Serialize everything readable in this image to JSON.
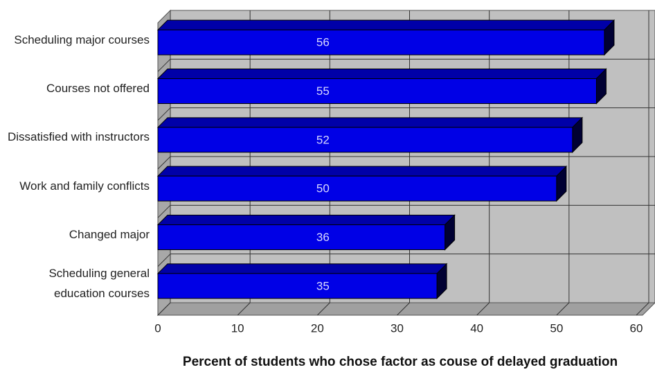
{
  "chart_data": {
    "type": "bar",
    "orientation": "horizontal",
    "categories": [
      "Scheduling major courses",
      "Courses not offered",
      "Dissatisfied with instructors",
      "Work and family conflicts",
      "Changed major",
      "Scheduling general education courses"
    ],
    "values": [
      56,
      55,
      52,
      50,
      36,
      35
    ],
    "color": "#0000e6",
    "xlim": [
      0,
      60
    ],
    "xticks": [
      0,
      10,
      20,
      30,
      40,
      50,
      60
    ],
    "x_label": "Percent of students who chose factor as couse of delayed graduation",
    "grid": true
  }
}
